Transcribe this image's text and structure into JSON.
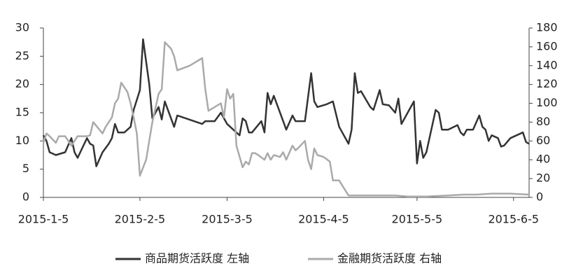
{
  "chart_data": {
    "type": "line",
    "legend": "bottom",
    "xlim": [
      "2015-1-5",
      "2015-6-10"
    ],
    "xticks": [
      "2015-1-5",
      "2015-2-5",
      "2015-3-5",
      "2015-4-5",
      "2015-5-5",
      "2015-6-5"
    ],
    "ylim": [
      0,
      30
    ],
    "yticks": [
      0,
      5,
      10,
      15,
      20,
      25,
      30
    ],
    "y2lim": [
      0,
      180
    ],
    "y2ticks": [
      0,
      20,
      40,
      60,
      80,
      100,
      120,
      140,
      160,
      180
    ],
    "series": [
      {
        "name": "商品期货活跃度 左轴",
        "color": "#333333",
        "axis": "y",
        "x": [
          "2015-1-5",
          "2015-1-6",
          "2015-1-7",
          "2015-1-9",
          "2015-1-12",
          "2015-1-14",
          "2015-1-15",
          "2015-1-16",
          "2015-1-19",
          "2015-1-20",
          "2015-1-21",
          "2015-1-22",
          "2015-1-24",
          "2015-1-26",
          "2015-1-27",
          "2015-1-28",
          "2015-1-29",
          "2015-1-31",
          "2015-2-2",
          "2015-2-3",
          "2015-2-5",
          "2015-2-6",
          "2015-2-8",
          "2015-2-9",
          "2015-2-11",
          "2015-2-12",
          "2015-2-13",
          "2015-2-16",
          "2015-2-17",
          "2015-2-25",
          "2015-2-26",
          "2015-3-1",
          "2015-3-3",
          "2015-3-5",
          "2015-3-6",
          "2015-3-9",
          "2015-3-10",
          "2015-3-11",
          "2015-3-12",
          "2015-3-13",
          "2015-3-16",
          "2015-3-17",
          "2015-3-18",
          "2015-3-19",
          "2015-3-20",
          "2015-3-23",
          "2015-3-24",
          "2015-3-26",
          "2015-3-27",
          "2015-3-30",
          "2015-4-1",
          "2015-4-2",
          "2015-4-3",
          "2015-4-6",
          "2015-4-8",
          "2015-4-10",
          "2015-4-13",
          "2015-4-14",
          "2015-4-15",
          "2015-4-16",
          "2015-4-17",
          "2015-4-20",
          "2015-4-21",
          "2015-4-23",
          "2015-4-24",
          "2015-4-26",
          "2015-4-28",
          "2015-4-29",
          "2015-4-30",
          "2015-5-4",
          "2015-5-5",
          "2015-5-6",
          "2015-5-7",
          "2015-5-8",
          "2015-5-11",
          "2015-5-12",
          "2015-5-13",
          "2015-5-15",
          "2015-5-18",
          "2015-5-19",
          "2015-5-20",
          "2015-5-21",
          "2015-5-23",
          "2015-5-25",
          "2015-5-26",
          "2015-5-27",
          "2015-5-28",
          "2015-5-29",
          "2015-5-31",
          "2015-6-1",
          "2015-6-2",
          "2015-6-4",
          "2015-6-8",
          "2015-6-9",
          "2015-6-10"
        ],
        "values": [
          11,
          10,
          8,
          7.5,
          8,
          10.5,
          8,
          7,
          10.5,
          9.5,
          9.2,
          5.5,
          8,
          9.5,
          10.5,
          13,
          11.5,
          11.5,
          12.5,
          15.5,
          19,
          28,
          20,
          14,
          16,
          13.8,
          17,
          12.5,
          14.5,
          13,
          13.5,
          13.5,
          15,
          13,
          12.5,
          11,
          14,
          13.5,
          11.5,
          11.5,
          13.5,
          11.5,
          18.5,
          16.5,
          18,
          13.5,
          12,
          14.5,
          13.5,
          13.5,
          22,
          17,
          16,
          16.5,
          17,
          12.5,
          9.5,
          12,
          22,
          18.5,
          18.8,
          16,
          15.5,
          19,
          16.5,
          16.3,
          15,
          17.5,
          13,
          17,
          6,
          10,
          7,
          8,
          15.5,
          15,
          12,
          12,
          12.8,
          11.5,
          11,
          12,
          12,
          14.5,
          12.5,
          12,
          10,
          11,
          10.5,
          9,
          9.2,
          10.5,
          11.5,
          9.8,
          9.5
        ]
      },
      {
        "name": "金融期货活跃度 右轴",
        "color": "#aaaaaa",
        "axis": "y2",
        "x": [
          "2015-1-5",
          "2015-1-6",
          "2015-1-7",
          "2015-1-9",
          "2015-1-10",
          "2015-1-12",
          "2015-1-13",
          "2015-1-14",
          "2015-1-16",
          "2015-1-19",
          "2015-1-20",
          "2015-1-21",
          "2015-1-24",
          "2015-1-25",
          "2015-1-27",
          "2015-1-28",
          "2015-1-29",
          "2015-1-30",
          "2015-2-1",
          "2015-2-2",
          "2015-2-3",
          "2015-2-4",
          "2015-2-5",
          "2015-2-7",
          "2015-2-9",
          "2015-2-11",
          "2015-2-12",
          "2015-2-13",
          "2015-2-15",
          "2015-2-16",
          "2015-2-17",
          "2015-2-21",
          "2015-2-25",
          "2015-2-26",
          "2015-2-27",
          "2015-3-1",
          "2015-3-3",
          "2015-3-4",
          "2015-3-5",
          "2015-3-6",
          "2015-3-7",
          "2015-3-8",
          "2015-3-10",
          "2015-3-11",
          "2015-3-12",
          "2015-3-13",
          "2015-3-14",
          "2015-3-15",
          "2015-3-17",
          "2015-3-18",
          "2015-3-19",
          "2015-3-20",
          "2015-3-22",
          "2015-3-23",
          "2015-3-24",
          "2015-3-26",
          "2015-3-27",
          "2015-3-28",
          "2015-3-30",
          "2015-3-31",
          "2015-4-1",
          "2015-4-2",
          "2015-4-3",
          "2015-4-5",
          "2015-4-7",
          "2015-4-8",
          "2015-4-10",
          "2015-4-13",
          "2015-4-16",
          "2015-4-20",
          "2015-4-25",
          "2015-4-28",
          "2015-5-2",
          "2015-5-8",
          "2015-5-15",
          "2015-5-20",
          "2015-5-24",
          "2015-5-29",
          "2015-6-4",
          "2015-6-10"
        ],
        "values": [
          58,
          68,
          65,
          58,
          65,
          65,
          60,
          55,
          65,
          65,
          66,
          80,
          68,
          75,
          85,
          100,
          105,
          122,
          112,
          100,
          85,
          68,
          23,
          40,
          80,
          110,
          115,
          165,
          158,
          150,
          135,
          140,
          148,
          115,
          92,
          96,
          100,
          85,
          115,
          105,
          110,
          55,
          32,
          38,
          35,
          47,
          47,
          45,
          40,
          47,
          40,
          45,
          43,
          48,
          40,
          55,
          50,
          53,
          60,
          40,
          30,
          52,
          45,
          43,
          38,
          18,
          18,
          2,
          2,
          2,
          2,
          2,
          1,
          1,
          2,
          3,
          3,
          4,
          4,
          3
        ]
      }
    ]
  }
}
